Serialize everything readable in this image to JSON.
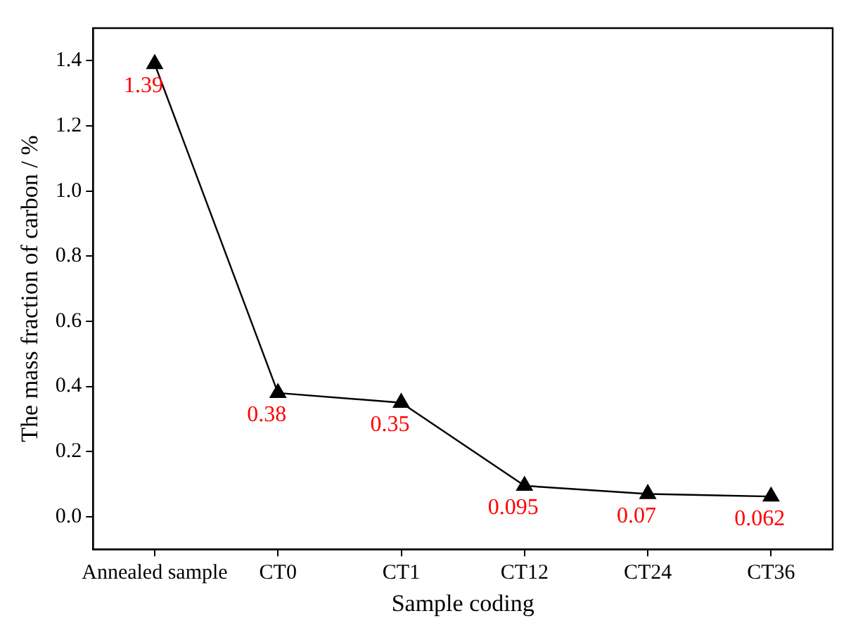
{
  "chart_data": {
    "type": "line",
    "xlabel": "Sample coding",
    "ylabel": "The mass fraction of carbon / %",
    "categories": [
      "Annealed sample",
      "CT0",
      "CT1",
      "CT12",
      "CT24",
      "CT36"
    ],
    "series": [
      {
        "color": "#000000",
        "values": [
          1.39,
          0.38,
          0.35,
          0.095,
          0.07,
          0.062
        ]
      }
    ],
    "ylim": [
      -0.1,
      1.5
    ],
    "yticks": [
      {
        "value": 0,
        "label": "0.0"
      },
      0.2,
      0.4,
      0.6,
      0.8,
      {
        "value": 1,
        "label": "1.0"
      },
      1.2,
      1.4
    ],
    "grid": false,
    "legend": false,
    "marker": "triangle",
    "line_style": "solid",
    "data_labels": true
  }
}
